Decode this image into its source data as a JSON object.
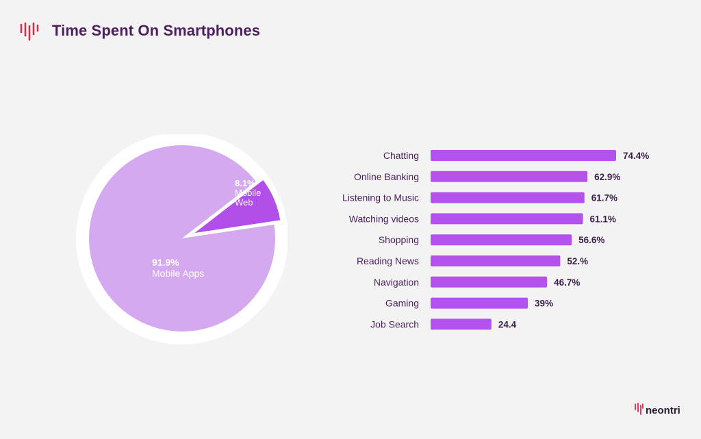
{
  "title": "Time Spent On Smartphones",
  "brand": "neontri",
  "colors": {
    "accent": "#e0294f",
    "title": "#4b1f5e",
    "pie_major": "#d4a9f0",
    "pie_minor": "#b24fe8",
    "bar": "#b352ef",
    "bar_label": "#4b1f5e",
    "value_label": "#3a1f47",
    "background": "#f4f3f4"
  },
  "icons": {
    "header": "neontri-logo-icon",
    "footer": "neontri-logo-icon"
  },
  "chart_data": [
    {
      "type": "pie",
      "slices": [
        {
          "label_value": "91.9%",
          "label": "Mobile Apps",
          "value": 91.9
        },
        {
          "label_value": "8.1%",
          "label": "Mobile Web",
          "value": 8.1,
          "exploded": true
        }
      ]
    },
    {
      "type": "bar",
      "orientation": "horizontal",
      "categories": [
        "Chatting",
        "Online Banking",
        "Listening to Music",
        "Watching videos",
        "Shopping",
        "Reading News",
        "Navigation",
        "Gaming",
        "Job Search"
      ],
      "values": [
        74.4,
        62.9,
        61.7,
        61.1,
        56.6,
        52.0,
        46.7,
        39.0,
        24.4
      ],
      "value_labels": [
        "74.4%",
        "62.9%",
        "61.7%",
        "61.1%",
        "56.6%",
        "52.%",
        "46.7%",
        "39%",
        "24.4"
      ]
    }
  ]
}
